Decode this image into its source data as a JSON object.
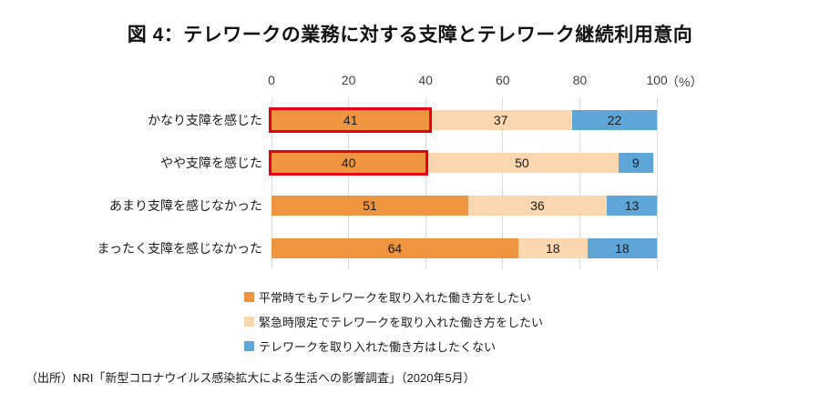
{
  "title": "図 4：テレワークの業務に対する支障とテレワーク継続利用意向",
  "axis": {
    "ticks": [
      "0",
      "20",
      "40",
      "60",
      "80",
      "100"
    ],
    "unit_label": "（%）"
  },
  "chart_data": {
    "type": "bar",
    "orientation": "horizontal",
    "stacked": true,
    "xlim": [
      0,
      100
    ],
    "grid": true,
    "legend_position": "bottom",
    "categories": [
      "かなり支障を感じた",
      "やや支障を感じた",
      "あまり支障を感じなかった",
      "まったく支障を感じなかった"
    ],
    "series": [
      {
        "name": "平常時でもテレワークを取り入れた働き方をしたい",
        "color": "#F0953F",
        "values": [
          41,
          40,
          51,
          64
        ]
      },
      {
        "name": "緊急時限定でテレワークを取り入れた働き方をしたい",
        "color": "#FAD7AE",
        "values": [
          37,
          50,
          36,
          18
        ]
      },
      {
        "name": "テレワークを取り入れた働き方はしたくない",
        "color": "#5EA5D8",
        "values": [
          22,
          9,
          13,
          18
        ]
      }
    ],
    "highlight": {
      "style": "red-outline",
      "color": "#E60012",
      "cells": [
        {
          "row": 0,
          "series": 0
        },
        {
          "row": 1,
          "series": 0
        }
      ]
    }
  },
  "source": "（出所）NRI「新型コロナウイルス感染拡大による生活への影響調査」（2020年5月）",
  "colors": {
    "gridline": "#D9D9D9",
    "background": "#FFFFFF"
  }
}
